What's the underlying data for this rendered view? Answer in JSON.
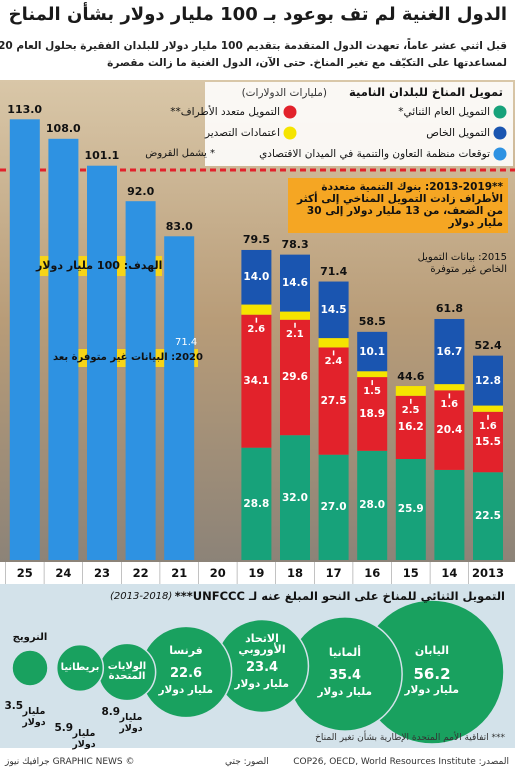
{
  "title": "الدول الغنية لم تف بوعود بـ 100 مليار دولار بشأن المناخ",
  "subtitle": [
    "قبل اثني عشر عاماً، تعهدت الدول المتقدمة بتقديم 100 مليار دولار للبلدان الفقيرة بحلول العام 2020",
    "لمساعدتها على التكيّف مع تغير المناخ. حتى الآن، الدول الغنية ما زالت مقصرة"
  ],
  "chart_data": [
    {
      "type": "bar",
      "stacked": true,
      "title": "تمويل المناخ للبلدان النامية",
      "subtitle": "(مليارات الدولارات)",
      "categories": [
        "2013",
        "14",
        "15",
        "16",
        "17",
        "18",
        "19",
        "20",
        "21",
        "22",
        "23",
        "24",
        "25"
      ],
      "series": [
        {
          "name": "التمويل العام الثنائي*",
          "color": "#17a27a",
          "values": [
            22.5,
            23.1,
            25.9,
            28.0,
            27.0,
            32.0,
            28.8,
            null,
            null,
            null,
            null,
            null,
            null
          ],
          "value_labels": [
            "22.5",
            null,
            "25.9",
            "28.0",
            "27.0",
            "32.0",
            "28.8",
            null,
            null,
            null,
            null,
            null,
            null
          ]
        },
        {
          "name": "التمويل متعدد الأطراف**",
          "color": "#e2222b",
          "values": [
            15.5,
            20.4,
            16.2,
            18.9,
            27.5,
            29.6,
            34.1,
            null,
            null,
            null,
            null,
            null,
            null
          ],
          "value_labels": [
            "15.5",
            "20.4",
            "16.2",
            "18.9",
            "27.5",
            "29.6",
            "34.1",
            null,
            null,
            null,
            null,
            null,
            null
          ]
        },
        {
          "name": "اعتمادات التصدير",
          "color": "#f5e400",
          "values": [
            1.6,
            1.6,
            2.5,
            1.5,
            2.4,
            2.1,
            2.6,
            null,
            null,
            null,
            null,
            null,
            null
          ],
          "value_labels": [
            "1.6",
            "1.6",
            "2.5",
            "1.5",
            "2.4",
            "2.1",
            "2.6",
            null,
            null,
            null,
            null,
            null,
            null
          ]
        },
        {
          "name": "التمويل الخاص",
          "color": "#1a55b0",
          "values": [
            12.8,
            16.7,
            null,
            10.1,
            14.5,
            14.6,
            14.0,
            null,
            null,
            null,
            null,
            null,
            null
          ],
          "value_labels": [
            "12.8",
            "16.7",
            null,
            "10.1",
            "14.5",
            "14.6",
            "14.0",
            null,
            null,
            null,
            null,
            null,
            null
          ]
        },
        {
          "name": "توقعات منظمة التعاون والتنمية في الميدان الاقتصادي",
          "color": "#2e92e2",
          "values": [
            null,
            null,
            null,
            null,
            null,
            null,
            null,
            null,
            83.0,
            92.0,
            101.1,
            108.0,
            113.0
          ],
          "value_labels": [
            null,
            null,
            null,
            null,
            null,
            null,
            null,
            null,
            "83.0",
            "92.0",
            "101.1",
            "108.0",
            "113.0"
          ]
        }
      ],
      "totals": [
        52.4,
        61.8,
        44.6,
        58.5,
        71.4,
        78.3,
        79.5,
        null,
        null,
        null,
        null,
        null,
        null
      ],
      "target": 100,
      "target_label": "الهدف: 100 مليار دولار",
      "footnote": "* يشمل القروض",
      "annotations": [
        "**2013-2019: بنوك التنمية متعددة الأطراف زادت التمويل المناخي إلى أكثر من الضعف، من 13 مليار دولار إلى 30 مليار دولار",
        "2015: بيانات التمويل الخاص غير متوفرة",
        "2020: البيانات غير متوفرة بعد",
        "71.4"
      ]
    },
    {
      "type": "bubble",
      "title": "التمويل الثنائي للمناخ على النحو المبلغ عنه لـ UNFCCC***",
      "subtitle": "(2013-2018)",
      "categories": [
        "اليابان",
        "ألمانيا",
        "الاتحاد الأوروبي",
        "فرنسا",
        "الولايات المتحدة",
        "بريطانيا",
        "النرويج"
      ],
      "values": [
        56.2,
        35.4,
        23.4,
        22.6,
        8.9,
        5.9,
        3.5
      ],
      "unit": "مليار دولار",
      "color": "#19a15f"
    }
  ],
  "footer": {
    "note": "*** اتفاقية الأمم المتحدة الإطارية بشأن تغير المناخ",
    "source": "المصدر: COP26, OECD, World Resources Institute",
    "photos": "الصور: جتي",
    "credit": "© GRAPHIC NEWS جرافيك نيوز"
  }
}
